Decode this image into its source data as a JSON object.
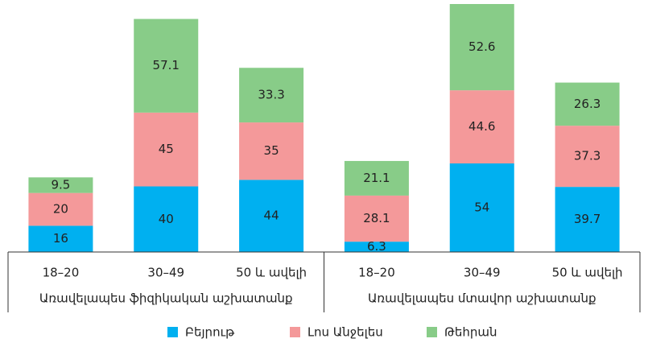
{
  "chart_data": {
    "type": "stacked_bar",
    "groups": [
      "Առավելապես ֆիզիկական աշխատանք",
      "Առավելապես մտավոր աշխատանք"
    ],
    "categories": [
      "18–20",
      "30–49",
      "50 և ավելի",
      "18–20",
      "30–49",
      "50 և ավելի"
    ],
    "series": [
      {
        "name": "Բեյրութ",
        "color": "#00b0f0",
        "values": [
          16,
          40,
          44,
          6.3,
          54,
          39.7
        ]
      },
      {
        "name": "Լոս Անջելես",
        "color": "#f4999a",
        "values": [
          20,
          45,
          35,
          28.1,
          44.6,
          37.3
        ]
      },
      {
        "name": "Թեհրան",
        "color": "#88cc88",
        "values": [
          9.5,
          57.1,
          33.3,
          21.1,
          52.6,
          26.3
        ]
      }
    ]
  }
}
